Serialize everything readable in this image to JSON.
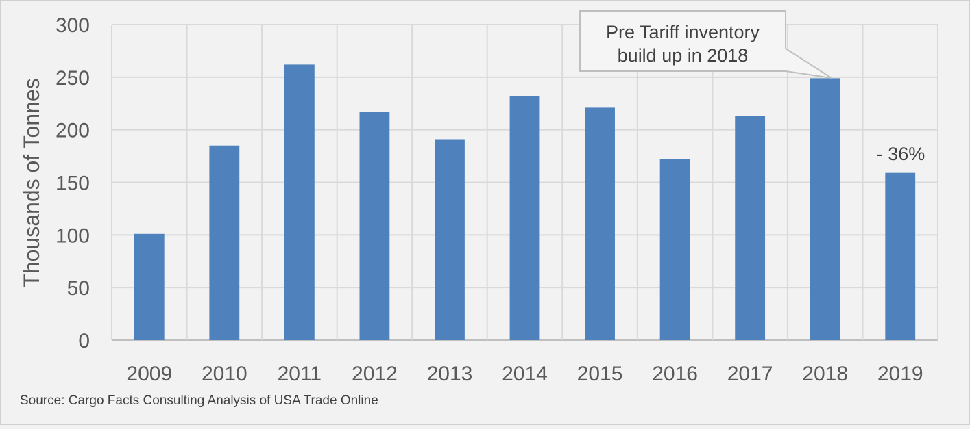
{
  "chart_data": {
    "type": "bar",
    "categories": [
      "2009",
      "2010",
      "2011",
      "2012",
      "2013",
      "2014",
      "2015",
      "2016",
      "2017",
      "2018",
      "2019"
    ],
    "values": [
      101,
      185,
      262,
      217,
      191,
      232,
      221,
      172,
      213,
      249,
      159
    ],
    "title": "",
    "xlabel": "",
    "ylabel": "Thousands of Tonnes",
    "ylim": [
      0,
      300
    ],
    "yticks": [
      "0",
      "50",
      "100",
      "150",
      "200",
      "250",
      "300"
    ],
    "grid": true,
    "bar_color": "#4f81bd",
    "annotations": {
      "callout_line1": "Pre Tariff inventory",
      "callout_line2": "build up in 2018",
      "change_label": "- 36%"
    }
  },
  "source": "Source: Cargo Facts Consulting Analysis of USA Trade Online"
}
